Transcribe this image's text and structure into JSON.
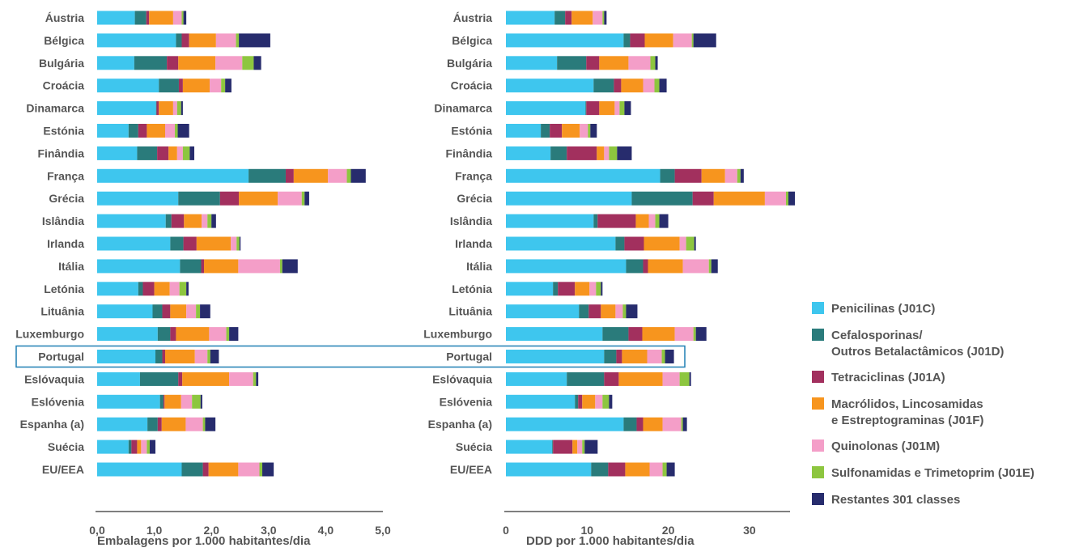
{
  "chart_data": [
    {
      "type": "bar",
      "orientation": "horizontal",
      "stacked": true,
      "xlabel": "Embalagens por 1.000 habitantes/dia",
      "xlim": [
        0,
        5
      ],
      "xticks": [
        0,
        1,
        2,
        3,
        4,
        5
      ],
      "xtick_labels": [
        "0,0",
        "1,0",
        "2,0",
        "3,0",
        "4,0",
        "5,0"
      ],
      "categories": [
        "Áustria",
        "Bélgica",
        "Bulgária",
        "Croácia",
        "Dinamarca",
        "Estónia",
        "Finândia",
        "França",
        "Grécia",
        "Islândia",
        "Irlanda",
        "Itália",
        "Letónia",
        "Lituânia",
        "Luxemburgo",
        "Portugal",
        "Eslóvaquia",
        "Eslóvenia",
        "Espanha (a)",
        "Suécia",
        "EU/EEA"
      ],
      "series": [
        {
          "name": "Penicilinas (J01C)",
          "values": [
            0.66,
            1.38,
            0.65,
            1.08,
            1.03,
            0.55,
            0.7,
            2.65,
            1.42,
            1.2,
            1.28,
            1.45,
            0.72,
            0.97,
            1.06,
            1.02,
            0.75,
            1.1,
            0.88,
            0.55,
            1.48
          ]
        },
        {
          "name": "Cefalosporinas/ Outros Betalactâmicos (J01D)",
          "values": [
            0.2,
            0.1,
            0.57,
            0.35,
            0.01,
            0.17,
            0.35,
            0.65,
            0.73,
            0.1,
            0.23,
            0.37,
            0.08,
            0.17,
            0.22,
            0.12,
            0.67,
            0.06,
            0.18,
            0.05,
            0.37
          ]
        },
        {
          "name": "Tetraciclinas (J01A)",
          "values": [
            0.05,
            0.13,
            0.2,
            0.07,
            0.04,
            0.15,
            0.2,
            0.14,
            0.33,
            0.22,
            0.23,
            0.05,
            0.2,
            0.14,
            0.1,
            0.05,
            0.07,
            0.02,
            0.07,
            0.1,
            0.1
          ]
        },
        {
          "name": "Macrólidos, Lincosamidas e Estreptograminas (J01F)",
          "values": [
            0.42,
            0.47,
            0.65,
            0.47,
            0.25,
            0.32,
            0.15,
            0.6,
            0.68,
            0.31,
            0.6,
            0.6,
            0.27,
            0.28,
            0.58,
            0.52,
            0.82,
            0.29,
            0.42,
            0.07,
            0.52
          ]
        },
        {
          "name": "Quinolonas (J01M)",
          "values": [
            0.15,
            0.35,
            0.47,
            0.2,
            0.07,
            0.17,
            0.1,
            0.33,
            0.42,
            0.1,
            0.1,
            0.73,
            0.17,
            0.17,
            0.3,
            0.22,
            0.42,
            0.19,
            0.3,
            0.1,
            0.37
          ]
        },
        {
          "name": "Sulfonamidas e Trimetoprim (J01E)",
          "values": [
            0.03,
            0.05,
            0.2,
            0.07,
            0.07,
            0.05,
            0.12,
            0.07,
            0.05,
            0.07,
            0.05,
            0.04,
            0.12,
            0.07,
            0.05,
            0.05,
            0.05,
            0.15,
            0.04,
            0.05,
            0.05
          ]
        },
        {
          "name": "Restantes 301 classes",
          "values": [
            0.05,
            0.55,
            0.13,
            0.11,
            0.03,
            0.2,
            0.08,
            0.26,
            0.08,
            0.08,
            0.02,
            0.27,
            0.04,
            0.18,
            0.16,
            0.15,
            0.04,
            0.03,
            0.18,
            0.1,
            0.2
          ]
        }
      ]
    },
    {
      "type": "bar",
      "orientation": "horizontal",
      "stacked": true,
      "xlabel": "DDD por 1.000 habitantes/dia",
      "xlim": [
        0,
        35
      ],
      "xticks": [
        0,
        10,
        20,
        30
      ],
      "xtick_labels": [
        "0",
        "10",
        "20",
        "30"
      ],
      "categories": [
        "Áustria",
        "Bélgica",
        "Bulgária",
        "Croácia",
        "Dinamarca",
        "Estónia",
        "Finândia",
        "França",
        "Grécia",
        "Islândia",
        "Irlanda",
        "Itália",
        "Letónia",
        "Lituânia",
        "Luxemburgo",
        "Portugal",
        "Eslóvaquia",
        "Eslóvenia",
        "Espanha (a)",
        "Suécia",
        "EU/EEA"
      ],
      "series": [
        {
          "name": "Penicilinas (J01C)",
          "values": [
            6.0,
            14.5,
            6.3,
            10.8,
            9.8,
            4.3,
            5.5,
            19.0,
            15.5,
            10.8,
            13.5,
            14.8,
            5.8,
            9.0,
            11.9,
            12.1,
            7.5,
            8.5,
            14.5,
            5.7,
            10.5
          ]
        },
        {
          "name": "Cefalosporinas/ Outros Betalactâmicos (J01D)",
          "values": [
            1.3,
            0.8,
            3.6,
            2.5,
            0.1,
            1.1,
            2.0,
            1.8,
            7.5,
            0.5,
            1.1,
            2.1,
            0.6,
            1.2,
            3.2,
            1.5,
            4.6,
            0.4,
            1.6,
            0.1,
            2.1
          ]
        },
        {
          "name": "Tetraciclinas (J01A)",
          "values": [
            0.8,
            1.8,
            1.6,
            0.9,
            1.6,
            1.5,
            3.7,
            3.3,
            2.6,
            4.7,
            2.4,
            0.6,
            2.1,
            1.5,
            1.7,
            0.7,
            1.8,
            0.5,
            0.8,
            2.4,
            2.1
          ]
        },
        {
          "name": "Macrólidos, Lincosamidas e Estreptograminas (J01F)",
          "values": [
            2.6,
            3.5,
            3.6,
            2.7,
            1.9,
            2.2,
            0.9,
            2.9,
            6.3,
            1.6,
            4.4,
            4.3,
            1.8,
            1.8,
            4.0,
            3.1,
            5.4,
            1.6,
            2.4,
            0.6,
            3.0
          ]
        },
        {
          "name": "Quinolonas (J01M)",
          "values": [
            1.2,
            2.3,
            2.7,
            1.4,
            0.6,
            1.0,
            0.6,
            1.5,
            2.6,
            0.8,
            0.8,
            3.2,
            0.8,
            0.9,
            2.3,
            1.8,
            2.1,
            0.9,
            2.3,
            0.6,
            1.6
          ]
        },
        {
          "name": "Sulfonamidas e Trimetoprim (J01E)",
          "values": [
            0.2,
            0.2,
            0.6,
            0.6,
            0.6,
            0.3,
            1.0,
            0.4,
            0.3,
            0.5,
            1.0,
            0.3,
            0.6,
            0.4,
            0.3,
            0.4,
            1.2,
            0.8,
            0.2,
            0.3,
            0.5
          ]
        },
        {
          "name": "Restantes 301 classes",
          "values": [
            0.3,
            2.8,
            0.3,
            0.9,
            0.8,
            0.8,
            1.8,
            0.4,
            0.8,
            1.1,
            0.2,
            0.8,
            0.2,
            1.4,
            1.3,
            1.1,
            0.2,
            0.4,
            0.5,
            1.6,
            1.0
          ]
        }
      ]
    }
  ],
  "colors": [
    "#3ec6ee",
    "#2a7b7b",
    "#a2305e",
    "#f7951e",
    "#f49ec8",
    "#8dc63f",
    "#272c6d"
  ],
  "highlight_color": "#1f7fb4",
  "highlight_category": "Portugal",
  "legend": {
    "position": "right",
    "entries": [
      {
        "lines": [
          "Penicilinas (J01C)"
        ]
      },
      {
        "lines": [
          "Cefalosporinas/",
          "Outros Betalactâmicos (J01D)"
        ]
      },
      {
        "lines": [
          "Tetraciclinas (J01A)"
        ]
      },
      {
        "lines": [
          "Macrólidos, Lincosamidas",
          "e Estreptograminas (J01F)"
        ]
      },
      {
        "lines": [
          "Quinolonas (J01M)"
        ]
      },
      {
        "lines": [
          "Sulfonamidas e Trimetoprim (J01E)"
        ]
      },
      {
        "lines": [
          "Restantes 301 classes"
        ]
      }
    ]
  }
}
